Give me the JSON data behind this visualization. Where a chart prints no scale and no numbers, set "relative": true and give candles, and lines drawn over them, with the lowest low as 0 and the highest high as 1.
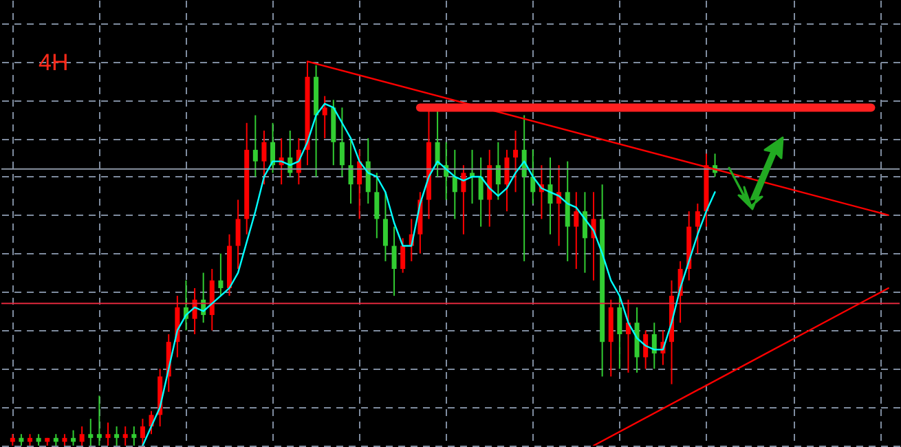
{
  "chart_data": {
    "type": "candlestick",
    "relative": true,
    "grid": true,
    "annotations": [
      "4H"
    ],
    "categories": [
      null,
      null,
      null,
      null,
      null,
      null,
      null,
      null,
      null,
      null,
      null,
      null,
      null,
      null,
      null,
      null,
      null,
      null,
      null,
      null,
      null,
      null,
      null,
      null,
      null,
      null,
      null,
      null,
      null,
      null,
      null,
      null,
      null,
      null,
      null,
      null,
      null,
      null,
      null,
      null,
      null,
      null,
      null,
      null,
      null,
      null,
      null,
      null,
      null,
      null,
      null,
      null,
      null,
      null,
      null,
      null,
      null,
      null,
      null,
      null,
      null,
      null,
      null,
      null,
      null,
      null,
      null,
      null,
      null,
      null,
      null,
      null,
      null,
      null,
      null,
      null,
      null,
      null,
      null,
      null,
      null,
      null,
      null,
      null,
      null,
      null,
      null,
      null,
      null,
      null,
      null,
      null,
      null,
      null,
      null,
      null,
      null,
      null,
      null,
      null,
      null,
      null
    ],
    "ohlc": [
      [
        0.01,
        0.03,
        0,
        0.02
      ],
      [
        0.02,
        0.03,
        0,
        0.01
      ],
      [
        0.01,
        0.03,
        0,
        0.02
      ],
      [
        0.02,
        0.03,
        0,
        0.01
      ],
      [
        0.01,
        0.02,
        0,
        0.02
      ],
      [
        0.02,
        0.03,
        0,
        0.01
      ],
      [
        0.01,
        0.03,
        0,
        0.02
      ],
      [
        0.02,
        0.04,
        0,
        0.01
      ],
      [
        0.01,
        0.05,
        0,
        0.03
      ],
      [
        0.03,
        0.07,
        0,
        0.02
      ],
      [
        0.03,
        0.13,
        0,
        0.02
      ],
      [
        0.02,
        0.06,
        0,
        0.03
      ],
      [
        0.03,
        0.05,
        0,
        0.02
      ],
      [
        0.02,
        0.05,
        0,
        0.03
      ],
      [
        0.03,
        0.05,
        0,
        0.02
      ],
      [
        0.02,
        0.07,
        0,
        0.05
      ],
      [
        0.05,
        0.09,
        0.03,
        0.08
      ],
      [
        0.08,
        0.2,
        0.05,
        0.18
      ],
      [
        0.18,
        0.29,
        0.14,
        0.27
      ],
      [
        0.27,
        0.39,
        0.23,
        0.36
      ],
      [
        0.36,
        0.43,
        0.3,
        0.33
      ],
      [
        0.33,
        0.41,
        0.29,
        0.38
      ],
      [
        0.38,
        0.45,
        0.32,
        0.34
      ],
      [
        0.34,
        0.46,
        0.3,
        0.43
      ],
      [
        0.43,
        0.5,
        0.39,
        0.41
      ],
      [
        0.41,
        0.55,
        0.39,
        0.52
      ],
      [
        0.52,
        0.64,
        0.46,
        0.59
      ],
      [
        0.59,
        0.84,
        0.55,
        0.77
      ],
      [
        0.77,
        0.86,
        0.7,
        0.74
      ],
      [
        0.74,
        0.82,
        0.68,
        0.79
      ],
      [
        0.79,
        0.84,
        0.71,
        0.73
      ],
      [
        0.73,
        0.8,
        0.68,
        0.75
      ],
      [
        0.75,
        0.82,
        0.7,
        0.71
      ],
      [
        0.71,
        0.8,
        0.68,
        0.77
      ],
      [
        0.77,
        1,
        0.73,
        0.96
      ],
      [
        0.96,
        0.99,
        0.7,
        0.86
      ],
      [
        0.86,
        0.91,
        0.8,
        0.88
      ],
      [
        0.88,
        0.9,
        0.73,
        0.79
      ],
      [
        0.79,
        0.88,
        0.7,
        0.73
      ],
      [
        0.73,
        0.8,
        0.63,
        0.68
      ],
      [
        0.68,
        0.77,
        0.59,
        0.74
      ],
      [
        0.74,
        0.8,
        0.63,
        0.66
      ],
      [
        0.66,
        0.71,
        0.54,
        0.59
      ],
      [
        0.59,
        0.66,
        0.48,
        0.52
      ],
      [
        0.52,
        0.57,
        0.39,
        0.46
      ],
      [
        0.46,
        0.54,
        0.45,
        0.52
      ],
      [
        0.52,
        0.59,
        0.48,
        0.55
      ],
      [
        0.55,
        0.66,
        0.5,
        0.64
      ],
      [
        0.64,
        0.88,
        0.59,
        0.79
      ],
      [
        0.79,
        0.88,
        0.7,
        0.73
      ],
      [
        0.73,
        0.79,
        0.64,
        0.7
      ],
      [
        0.7,
        0.77,
        0.59,
        0.66
      ],
      [
        0.66,
        0.73,
        0.55,
        0.71
      ],
      [
        0.71,
        0.77,
        0.63,
        0.7
      ],
      [
        0.7,
        0.75,
        0.57,
        0.64
      ],
      [
        0.64,
        0.77,
        0.57,
        0.73
      ],
      [
        0.73,
        0.79,
        0.64,
        0.68
      ],
      [
        0.68,
        0.77,
        0.61,
        0.75
      ],
      [
        0.75,
        0.82,
        0.66,
        0.77
      ],
      [
        0.77,
        0.86,
        0.48,
        0.7
      ],
      [
        0.7,
        0.77,
        0.63,
        0.66
      ],
      [
        0.66,
        0.73,
        0.59,
        0.68
      ],
      [
        0.68,
        0.75,
        0.55,
        0.63
      ],
      [
        0.63,
        0.73,
        0.52,
        0.66
      ],
      [
        0.66,
        0.74,
        0.48,
        0.57
      ],
      [
        0.57,
        0.66,
        0.46,
        0.61
      ],
      [
        0.61,
        0.66,
        0.45,
        0.54
      ],
      [
        0.54,
        0.66,
        0.43,
        0.59
      ],
      [
        0.59,
        0.68,
        0.18,
        0.27
      ],
      [
        0.27,
        0.38,
        0.18,
        0.36
      ],
      [
        0.36,
        0.39,
        0.2,
        0.29
      ],
      [
        0.29,
        0.38,
        0.19,
        0.32
      ],
      [
        0.32,
        0.36,
        0.19,
        0.23
      ],
      [
        0.23,
        0.3,
        0.2,
        0.29
      ],
      [
        0.29,
        0.32,
        0.2,
        0.24
      ],
      [
        0.24,
        0.3,
        0.21,
        0.27
      ],
      [
        0.27,
        0.43,
        0.16,
        0.39
      ],
      [
        0.39,
        0.48,
        0.32,
        0.46
      ],
      [
        0.46,
        0.61,
        0.43,
        0.57
      ],
      [
        0.57,
        0.63,
        0.5,
        0.61
      ],
      [
        0.61,
        0.76,
        0.57,
        0.73
      ],
      [
        0.73,
        0.76,
        0.7,
        0.71
      ],
      null,
      null,
      null,
      null,
      null,
      null,
      null,
      null,
      null,
      null,
      null,
      null,
      null,
      null,
      null,
      null,
      null,
      null,
      null,
      null
    ],
    "colors": [
      "#ff0000",
      "#32cd32",
      "#ff0000",
      "#32cd32",
      "#ff0000",
      "#32cd32",
      "#ff0000",
      "#32cd32",
      "#ff0000",
      "#32cd32",
      "#32cd32",
      "#ff0000",
      "#32cd32",
      "#ff0000",
      "#32cd32",
      "#ff0000",
      "#ff0000",
      "#ff0000",
      "#ff0000",
      "#ff0000",
      "#32cd32",
      "#ff0000",
      "#32cd32",
      "#ff0000",
      "#32cd32",
      "#ff0000",
      "#ff0000",
      "#ff0000",
      "#32cd32",
      "#ff0000",
      "#32cd32",
      "#ff0000",
      "#32cd32",
      "#ff0000",
      "#ff0000",
      "#32cd32",
      "#ff0000",
      "#32cd32",
      "#32cd32",
      "#32cd32",
      "#ff0000",
      "#32cd32",
      "#32cd32",
      "#32cd32",
      "#32cd32",
      "#ff0000",
      "#ff0000",
      "#ff0000",
      "#ff0000",
      "#32cd32",
      "#32cd32",
      "#32cd32",
      "#ff0000",
      "#32cd32",
      "#32cd32",
      "#ff0000",
      "#32cd32",
      "#ff0000",
      "#ff0000",
      "#32cd32",
      "#32cd32",
      "#ff0000",
      "#32cd32",
      "#ff0000",
      "#32cd32",
      "#ff0000",
      "#32cd32",
      "#ff0000",
      "#32cd32",
      "#ff0000",
      "#32cd32",
      "#ff0000",
      "#32cd32",
      "#ff0000",
      "#32cd32",
      "#ff0000",
      "#ff0000",
      "#ff0000",
      "#ff0000",
      "#ff0000",
      "#ff0000",
      "#32cd32",
      null,
      null,
      null,
      null,
      null,
      null,
      null,
      null,
      null,
      null,
      null,
      null,
      null,
      null,
      null,
      null,
      null,
      null,
      null,
      null
    ],
    "series": [
      {
        "type": "line",
        "color": "#00ffff",
        "values": [
          null,
          null,
          null,
          null,
          null,
          null,
          null,
          null,
          null,
          null,
          null,
          null,
          null,
          null,
          null,
          0,
          0.05,
          0.1,
          0.2,
          0.3,
          0.34,
          0.36,
          0.35,
          0.37,
          0.39,
          0.41,
          0.45,
          0.53,
          0.61,
          0.7,
          0.74,
          0.74,
          0.73,
          0.74,
          0.79,
          0.86,
          0.89,
          0.88,
          0.84,
          0.8,
          0.74,
          0.71,
          0.7,
          0.66,
          0.58,
          0.52,
          0.52,
          0.63,
          0.7,
          0.74,
          0.72,
          0.7,
          0.69,
          0.7,
          0.7,
          0.67,
          0.65,
          0.67,
          0.71,
          0.74,
          0.7,
          0.67,
          0.66,
          0.65,
          0.63,
          0.62,
          0.59,
          0.56,
          0.5,
          0.43,
          0.39,
          0.32,
          0.28,
          0.26,
          0.25,
          0.25,
          0.32,
          0.41,
          0.48,
          0.55,
          0.61,
          0.66,
          null,
          null,
          null,
          null,
          null,
          null,
          null,
          null,
          null,
          null,
          null,
          null,
          null,
          null,
          null,
          null,
          null,
          null,
          null,
          null
        ]
      },
      {
        "type": "line",
        "color": "#ff0000",
        "values": [
          null,
          null,
          null,
          null,
          null,
          null,
          null,
          null,
          null,
          null,
          null,
          null,
          null,
          null,
          null,
          null,
          null,
          null,
          null,
          null,
          null,
          null,
          null,
          null,
          null,
          null,
          null,
          null,
          null,
          null,
          null,
          null,
          null,
          null,
          1,
          null,
          null,
          null,
          null,
          null,
          null,
          null,
          null,
          null,
          null,
          null,
          null,
          null,
          null,
          null,
          null,
          null,
          null,
          null,
          null,
          null,
          null,
          null,
          null,
          null,
          null,
          null,
          null,
          null,
          null,
          null,
          null,
          null,
          null,
          null,
          null,
          null,
          null,
          null,
          null,
          null,
          null,
          null,
          null,
          null,
          null,
          null,
          null,
          null,
          null,
          null,
          null,
          null,
          null,
          null,
          null,
          null,
          null,
          null,
          null,
          null,
          null,
          null,
          null,
          null,
          null,
          0.6
        ]
      },
      {
        "type": "line",
        "color": "#ff0000",
        "values": [
          null,
          null,
          null,
          null,
          null,
          null,
          null,
          null,
          null,
          null,
          null,
          null,
          null,
          null,
          null,
          null,
          null,
          null,
          null,
          null,
          null,
          null,
          null,
          null,
          null,
          null,
          null,
          null,
          null,
          null,
          null,
          null,
          null,
          null,
          null,
          null,
          null,
          null,
          null,
          null,
          null,
          null,
          null,
          null,
          null,
          null,
          null,
          null,
          null,
          null,
          null,
          null,
          null,
          null,
          null,
          null,
          null,
          null,
          null,
          null,
          null,
          null,
          null,
          null,
          null,
          null,
          null,
          0,
          null,
          null,
          null,
          null,
          null,
          null,
          null,
          null,
          null,
          null,
          null,
          null,
          null,
          null,
          null,
          null,
          null,
          null,
          null,
          null,
          null,
          null,
          null,
          null,
          null,
          null,
          null,
          null,
          null,
          null,
          null,
          null,
          null,
          0.41
        ]
      },
      {
        "type": "line",
        "color": "#ff2020",
        "values": [
          null,
          null,
          null,
          null,
          null,
          null,
          null,
          null,
          null,
          null,
          null,
          null,
          null,
          null,
          null,
          null,
          null,
          null,
          null,
          null,
          null,
          null,
          null,
          null,
          null,
          null,
          null,
          null,
          null,
          null,
          null,
          null,
          null,
          null,
          null,
          null,
          null,
          null,
          null,
          null,
          null,
          null,
          null,
          null,
          null,
          null,
          null,
          0.88,
          null,
          null,
          null,
          null,
          null,
          null,
          null,
          null,
          null,
          null,
          null,
          null,
          null,
          null,
          null,
          null,
          null,
          null,
          null,
          null,
          null,
          null,
          null,
          null,
          null,
          null,
          null,
          null,
          null,
          null,
          null,
          null,
          null,
          null,
          null,
          null,
          null,
          null,
          null,
          null,
          null,
          null,
          null,
          null,
          null,
          null,
          null,
          null,
          null,
          null,
          null,
          0.88,
          null,
          null
        ]
      }
    ],
    "ref_lines": [
      {
        "axis": "y",
        "value": 0.72,
        "color": "#8c96a5"
      },
      {
        "axis": "y",
        "value": 0.37,
        "color": "#e0283c"
      }
    ]
  }
}
